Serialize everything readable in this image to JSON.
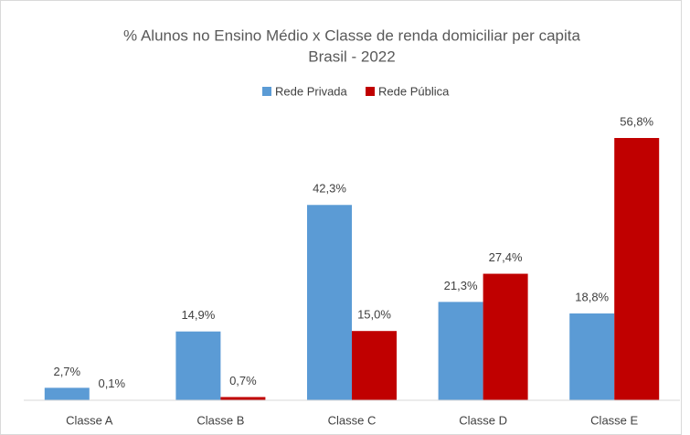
{
  "chart_data": {
    "type": "bar",
    "title": "% Alunos no Ensino Médio x Classe de renda domiciliar per capita",
    "subtitle": "Brasil - 2022",
    "categories": [
      "Classe A",
      "Classe B",
      "Classe C",
      "Classe D",
      "Classe E"
    ],
    "series": [
      {
        "name": "Rede Privada",
        "color": "#5b9bd5",
        "values": [
          2.7,
          14.9,
          42.3,
          21.3,
          18.8
        ],
        "value_labels": [
          "2,7%",
          "14,9%",
          "42,3%",
          "21,3%",
          "18,8%"
        ]
      },
      {
        "name": "Rede Pública",
        "color": "#c00000",
        "values": [
          0.1,
          0.7,
          15.0,
          27.4,
          56.8
        ],
        "value_labels": [
          "0,1%",
          "0,7%",
          "15,0%",
          "27,4%",
          "56,8%"
        ]
      }
    ],
    "legend": "top"
  }
}
